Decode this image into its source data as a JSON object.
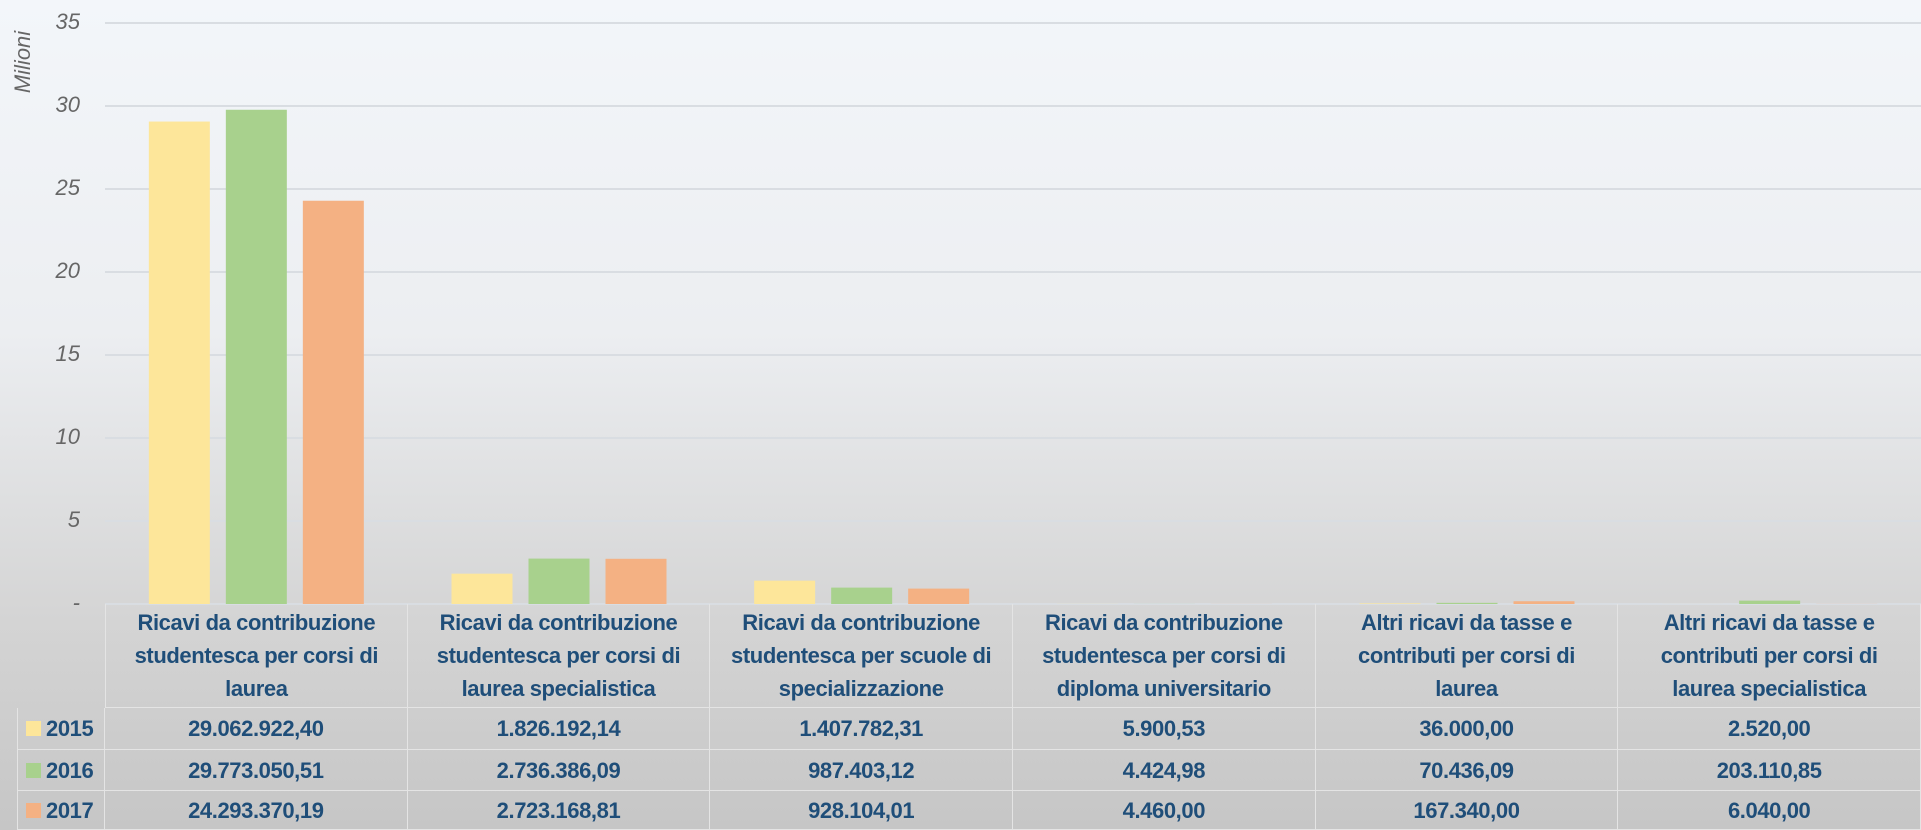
{
  "chart_data": {
    "type": "bar",
    "y_axis_label": "Milioni",
    "categories": [
      "Ricavi da contribuzione studentesca per corsi di laurea",
      "Ricavi da contribuzione studentesca per corsi di laurea specialistica",
      "Ricavi da contribuzione studentesca per scuole di specializzazione",
      "Ricavi da contribuzione studentesca per corsi di diploma universitario",
      "Altri ricavi da tasse e contributi per corsi di laurea",
      "Altri ricavi da tasse e contributi per corsi di laurea specialistica"
    ],
    "series": [
      {
        "name": "2015",
        "color": "#fde69a",
        "values": [
          29.0629224,
          1.82619214,
          1.40778231,
          0.00590053,
          0.036,
          0.00252
        ],
        "value_labels": [
          "29.062.922,40",
          "1.826.192,14",
          "1.407.782,31",
          "5.900,53",
          "36.000,00",
          "2.520,00"
        ]
      },
      {
        "name": "2016",
        "color": "#a8d18d",
        "values": [
          29.77305051,
          2.73638609,
          0.98740312,
          0.00442498,
          0.07043609,
          0.20311085
        ],
        "value_labels": [
          "29.773.050,51",
          "2.736.386,09",
          "987.403,12",
          "4.424,98",
          "70.436,09",
          "203.110,85"
        ]
      },
      {
        "name": "2017",
        "color": "#f4b183",
        "values": [
          24.29337019,
          2.72316881,
          0.92810401,
          0.00446,
          0.16734,
          0.00604
        ],
        "value_labels": [
          "24.293.370,19",
          "2.723.168,81",
          "928.104,01",
          "4.460,00",
          "167.340,00",
          "6.040,00"
        ]
      }
    ],
    "ylim": [
      0,
      35
    ],
    "yticks": [
      {
        "value": 0,
        "label": "-"
      },
      5,
      10,
      15,
      20,
      25,
      30,
      35
    ],
    "grid": true
  }
}
